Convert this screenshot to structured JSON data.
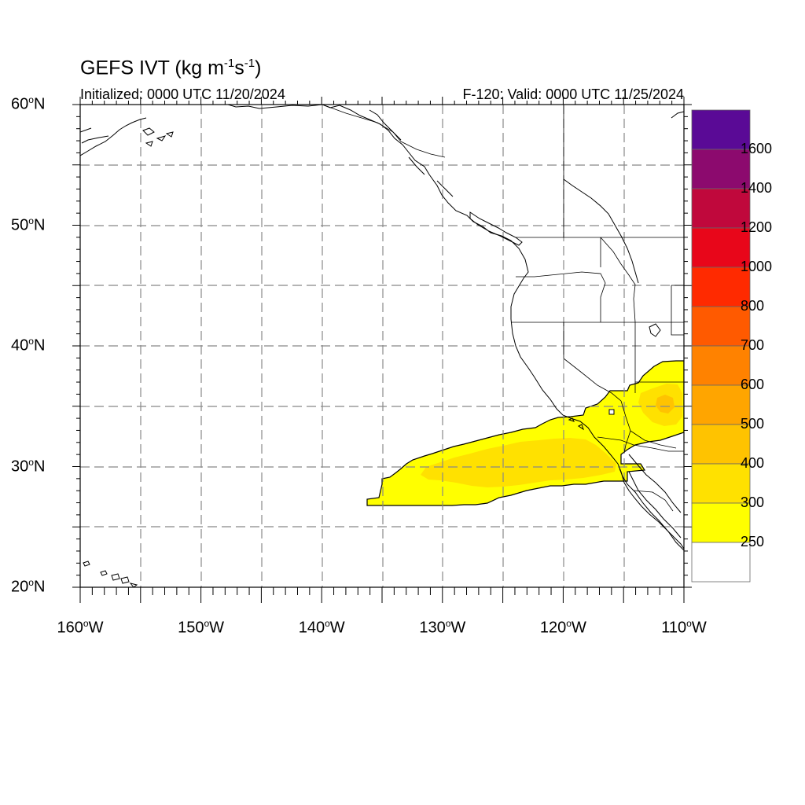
{
  "title": {
    "main": "GEFS IVT (kg m",
    "exp1": "-1",
    "mid": "s",
    "exp2": "-1",
    "close": ")"
  },
  "subtitle_left": "Initialized: 0000 UTC 11/20/2024",
  "subtitle_right": "F-120: Valid: 0000 UTC 11/25/2024",
  "lat_labels": [
    {
      "num": "60",
      "deg": "o",
      "hem": "N",
      "value": 60
    },
    {
      "num": "50",
      "deg": "o",
      "hem": "N",
      "value": 50
    },
    {
      "num": "40",
      "deg": "o",
      "hem": "N",
      "value": 40
    },
    {
      "num": "30",
      "deg": "o",
      "hem": "N",
      "value": 30
    },
    {
      "num": "20",
      "deg": "o",
      "hem": "N",
      "value": 20
    }
  ],
  "lon_labels": [
    {
      "num": "160",
      "deg": "o",
      "hem": "W",
      "value": -160
    },
    {
      "num": "150",
      "deg": "o",
      "hem": "W",
      "value": -150
    },
    {
      "num": "140",
      "deg": "o",
      "hem": "W",
      "value": -140
    },
    {
      "num": "130",
      "deg": "o",
      "hem": "W",
      "value": -130
    },
    {
      "num": "120",
      "deg": "o",
      "hem": "W",
      "value": -120
    },
    {
      "num": "110",
      "deg": "o",
      "hem": "W",
      "value": -110
    }
  ],
  "colorbar": {
    "levels": [
      "1600",
      "1400",
      "1200",
      "1000",
      "800",
      "700",
      "600",
      "500",
      "400",
      "300",
      "250"
    ],
    "colors": [
      "#5a0a96",
      "#8c0a6e",
      "#c0083c",
      "#e8061a",
      "#ff2a00",
      "#ff5a00",
      "#ff8200",
      "#ffa500",
      "#ffc300",
      "#ffe100",
      "#ffff00",
      "#ffffff"
    ]
  },
  "colors": {
    "ivt_250": "#ffff00",
    "ivt_300": "#ffe100",
    "ivt_400": "#ffc300"
  }
}
